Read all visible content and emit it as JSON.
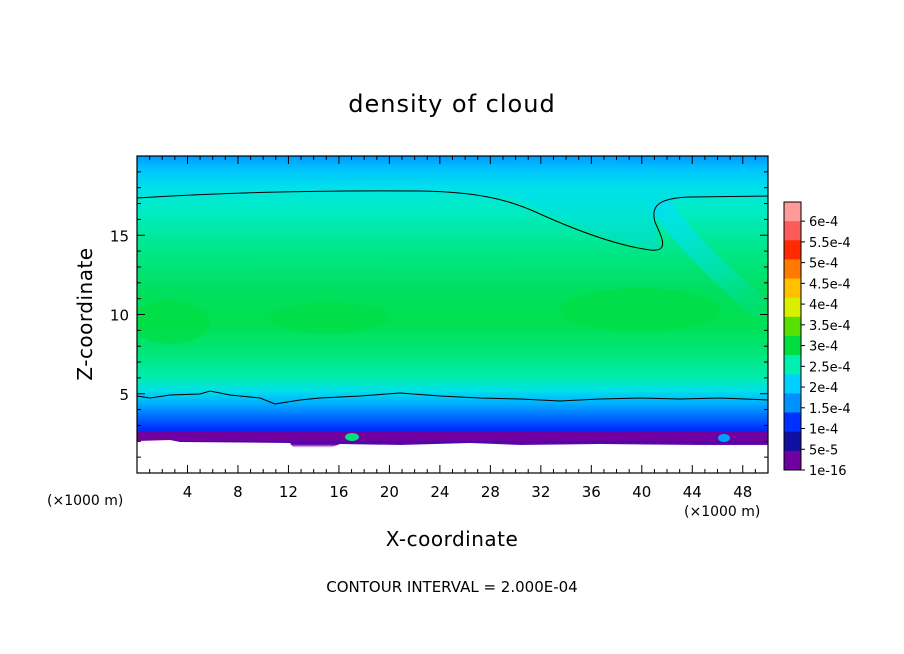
{
  "chart_data": {
    "type": "heatmap",
    "title": "density of cloud",
    "xlabel": "X-coordinate",
    "ylabel": "Z-coordinate",
    "x_unit_left": "(×1000 m)",
    "x_unit_right": "(×1000 m)",
    "footer": "CONTOUR INTERVAL = 2.000E-04",
    "xlim": [
      0,
      50
    ],
    "ylim": [
      0,
      20
    ],
    "x_ticks": [
      "4",
      "8",
      "12",
      "16",
      "20",
      "24",
      "28",
      "32",
      "36",
      "40",
      "44",
      "48"
    ],
    "x_tick_values": [
      4,
      8,
      12,
      16,
      20,
      24,
      28,
      32,
      36,
      40,
      44,
      48
    ],
    "y_ticks": [
      "5",
      "10",
      "15"
    ],
    "y_tick_values": [
      5,
      10,
      15
    ],
    "colorbar": {
      "labels": [
        "6e-4",
        "5.5e-4",
        "5e-4",
        "4.5e-4",
        "4e-4",
        "3.5e-4",
        "3e-4",
        "2.5e-4",
        "2e-4",
        "1.5e-4",
        "1e-4",
        "5e-5",
        "1e-16"
      ],
      "colors": [
        "#ff9a9a",
        "#ff5a5a",
        "#ff2a00",
        "#ff7a00",
        "#ffc000",
        "#d8f000",
        "#58e000",
        "#00dd40",
        "#00f0b0",
        "#00d0ff",
        "#0090ff",
        "#0030ff",
        "#1010a0",
        "#7000a0"
      ]
    },
    "contour_values": [
      0.0002,
      0.0002
    ]
  }
}
